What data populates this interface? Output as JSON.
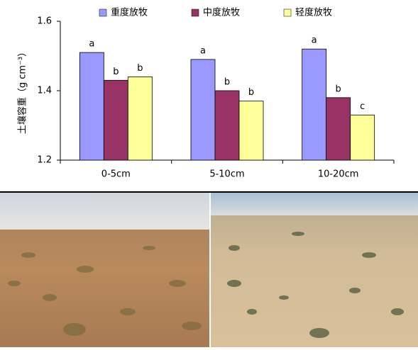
{
  "chart_data": {
    "type": "bar",
    "y_label": "土壤容重（g cm⁻³）",
    "categories": [
      "0-5cm",
      "5-10cm",
      "10-20cm"
    ],
    "series": [
      {
        "name": "重度放牧",
        "color": "#9999ff",
        "values": [
          1.51,
          1.49,
          1.52
        ],
        "letters": [
          "a",
          "a",
          "a"
        ]
      },
      {
        "name": "中度放牧",
        "color": "#993366",
        "values": [
          1.43,
          1.4,
          1.38
        ],
        "letters": [
          "b",
          "b",
          "b"
        ]
      },
      {
        "name": "轻度放牧",
        "color": "#ffff99",
        "values": [
          1.44,
          1.37,
          1.33
        ],
        "letters": [
          "b",
          "b",
          "c"
        ]
      }
    ],
    "ylim": [
      1.2,
      1.6
    ],
    "yticks": [
      1.2,
      1.4,
      1.6
    ],
    "legend": "top"
  }
}
